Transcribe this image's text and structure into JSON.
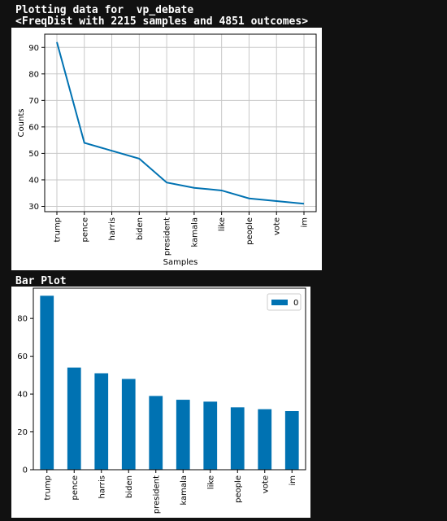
{
  "output": {
    "line1": "Plotting data for  vp_debate",
    "line2": "<FreqDist with 2215 samples and 4851 outcomes>",
    "bar_heading": "Bar Plot"
  },
  "colors": {
    "background": "#111111",
    "series": "#0072b2",
    "grid": "#c8c8c8"
  },
  "chart_data": [
    {
      "type": "line",
      "title": "",
      "xlabel": "Samples",
      "ylabel": "Counts",
      "categories": [
        "trump",
        "pence",
        "harris",
        "biden",
        "president",
        "kamala",
        "like",
        "people",
        "vote",
        "im"
      ],
      "values": [
        92,
        54,
        51,
        48,
        39,
        37,
        36,
        33,
        32,
        31
      ],
      "ylim": [
        28,
        95
      ],
      "yticks": [
        30,
        40,
        50,
        60,
        70,
        80,
        90
      ],
      "grid": true
    },
    {
      "type": "bar",
      "title": "",
      "xlabel": "",
      "ylabel": "",
      "categories": [
        "trump",
        "pence",
        "harris",
        "biden",
        "president",
        "kamala",
        "like",
        "people",
        "vote",
        "im"
      ],
      "series": [
        {
          "name": "0",
          "values": [
            92,
            54,
            51,
            48,
            39,
            37,
            36,
            33,
            32,
            31
          ]
        }
      ],
      "ylim": [
        0,
        96
      ],
      "yticks": [
        0,
        20,
        40,
        60,
        80
      ],
      "grid": false,
      "legend": "top-right"
    }
  ]
}
